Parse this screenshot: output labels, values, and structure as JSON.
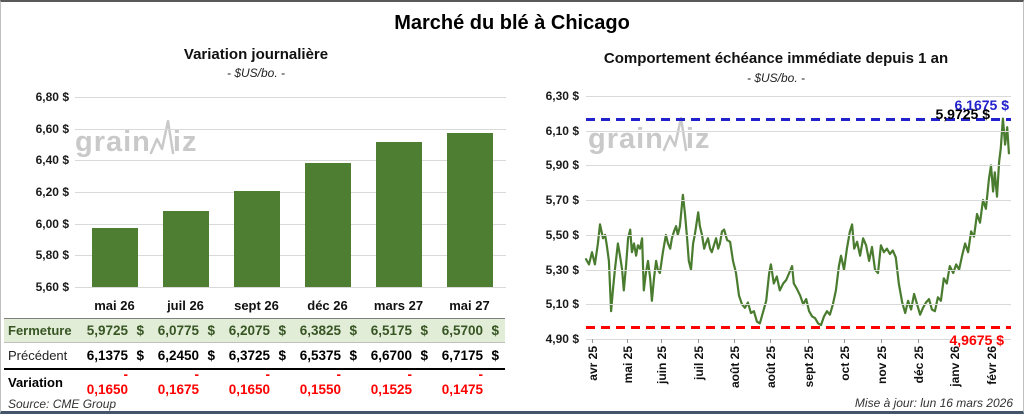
{
  "page": {
    "title": "Marché du blé à Chicago",
    "source": "Source: CME Group",
    "updated": "Mise à jour: lun 16 mars 2026",
    "watermark": "grainwiz"
  },
  "colors": {
    "bar_green": "#4e7e31",
    "line_green": "#4a7c2f",
    "table_green_bg": "#e2edd8",
    "dark_green_text": "#375623",
    "variation_red": "#ff0000",
    "blue_dash": "#2222cc",
    "red_dash": "#ff0000",
    "gridline": "#d9d9d9",
    "watermark_gray": "#c9c9c9"
  },
  "chart_data": [
    {
      "type": "bar",
      "title": "Variation journalière",
      "subtitle": "- $US/bo. -",
      "categories": [
        "mai 26",
        "juil 26",
        "sept 26",
        "déc 26",
        "mars 27",
        "mai 27"
      ],
      "values": [
        5.9725,
        6.0775,
        6.2075,
        6.3825,
        6.5175,
        6.57
      ],
      "ylim": [
        5.6,
        6.8
      ],
      "y_ticks": [
        {
          "v": 6.8,
          "label": "6,80 $"
        },
        {
          "v": 6.6,
          "label": "6,60 $"
        },
        {
          "v": 6.4,
          "label": "6,40 $"
        },
        {
          "v": 6.2,
          "label": "6,20 $"
        },
        {
          "v": 6.0,
          "label": "6,00 $"
        },
        {
          "v": 5.8,
          "label": "5,80 $"
        },
        {
          "v": 5.6,
          "label": "5,60 $"
        }
      ],
      "grid": true,
      "legend": "none"
    },
    {
      "type": "line",
      "title": "Comportement échéance immédiate depuis 1 an",
      "subtitle": "- $US/bo. -",
      "ylim": [
        4.9,
        6.3
      ],
      "y_ticks": [
        {
          "v": 6.3,
          "label": "6,30 $"
        },
        {
          "v": 6.1,
          "label": "6,10 $"
        },
        {
          "v": 5.9,
          "label": "5,90 $"
        },
        {
          "v": 5.7,
          "label": "5,70 $"
        },
        {
          "v": 5.5,
          "label": "5,50 $"
        },
        {
          "v": 5.3,
          "label": "5,30 $"
        },
        {
          "v": 5.1,
          "label": "5,10 $"
        },
        {
          "v": 4.9,
          "label": "4,90 $"
        }
      ],
      "x_ticks": [
        {
          "t": 0.014,
          "label": "avr 25"
        },
        {
          "t": 0.096,
          "label": "mai 25"
        },
        {
          "t": 0.176,
          "label": "juin 25"
        },
        {
          "t": 0.264,
          "label": "juil 25"
        },
        {
          "t": 0.348,
          "label": "août 25"
        },
        {
          "t": 0.433,
          "label": "août 25"
        },
        {
          "t": 0.522,
          "label": "sept 25"
        },
        {
          "t": 0.607,
          "label": "oct 25"
        },
        {
          "t": 0.694,
          "label": "nov 25"
        },
        {
          "t": 0.781,
          "label": "déc 25"
        },
        {
          "t": 0.866,
          "label": "janv 26"
        },
        {
          "t": 0.953,
          "label": "févr 26"
        }
      ],
      "hlines": [
        {
          "v": 6.1675,
          "label": "6,1675 $",
          "color": "#2222cc",
          "style": "dashed"
        },
        {
          "v": 4.9675,
          "label": "4,9675 $",
          "color": "#ff0000",
          "style": "dashed"
        }
      ],
      "last_price_label": "5,9725 $",
      "series": [
        {
          "name": "échéance immédiate",
          "points": [
            [
              0.0,
              5.36
            ],
            [
              0.007,
              5.33
            ],
            [
              0.014,
              5.4
            ],
            [
              0.021,
              5.33
            ],
            [
              0.028,
              5.45
            ],
            [
              0.033,
              5.56
            ],
            [
              0.04,
              5.48
            ],
            [
              0.045,
              5.5
            ],
            [
              0.049,
              5.44
            ],
            [
              0.054,
              5.35
            ],
            [
              0.059,
              5.06
            ],
            [
              0.064,
              5.2
            ],
            [
              0.068,
              5.3
            ],
            [
              0.075,
              5.45
            ],
            [
              0.08,
              5.38
            ],
            [
              0.085,
              5.3
            ],
            [
              0.089,
              5.18
            ],
            [
              0.094,
              5.32
            ],
            [
              0.099,
              5.48
            ],
            [
              0.104,
              5.53
            ],
            [
              0.108,
              5.4
            ],
            [
              0.113,
              5.45
            ],
            [
              0.118,
              5.38
            ],
            [
              0.122,
              5.44
            ],
            [
              0.127,
              5.42
            ],
            [
              0.132,
              5.48
            ],
            [
              0.136,
              5.18
            ],
            [
              0.141,
              5.28
            ],
            [
              0.146,
              5.35
            ],
            [
              0.151,
              5.25
            ],
            [
              0.155,
              5.12
            ],
            [
              0.16,
              5.25
            ],
            [
              0.165,
              5.35
            ],
            [
              0.169,
              5.3
            ],
            [
              0.174,
              5.28
            ],
            [
              0.181,
              5.4
            ],
            [
              0.188,
              5.5
            ],
            [
              0.193,
              5.45
            ],
            [
              0.198,
              5.42
            ],
            [
              0.202,
              5.48
            ],
            [
              0.207,
              5.52
            ],
            [
              0.212,
              5.55
            ],
            [
              0.216,
              5.5
            ],
            [
              0.221,
              5.55
            ],
            [
              0.228,
              5.73
            ],
            [
              0.233,
              5.62
            ],
            [
              0.238,
              5.48
            ],
            [
              0.242,
              5.35
            ],
            [
              0.247,
              5.3
            ],
            [
              0.252,
              5.45
            ],
            [
              0.256,
              5.5
            ],
            [
              0.264,
              5.63
            ],
            [
              0.268,
              5.55
            ],
            [
              0.273,
              5.5
            ],
            [
              0.278,
              5.42
            ],
            [
              0.282,
              5.45
            ],
            [
              0.287,
              5.48
            ],
            [
              0.292,
              5.42
            ],
            [
              0.296,
              5.4
            ],
            [
              0.301,
              5.44
            ],
            [
              0.306,
              5.48
            ],
            [
              0.311,
              5.42
            ],
            [
              0.315,
              5.45
            ],
            [
              0.32,
              5.52
            ],
            [
              0.325,
              5.53
            ],
            [
              0.332,
              5.47
            ],
            [
              0.339,
              5.46
            ],
            [
              0.346,
              5.35
            ],
            [
              0.353,
              5.28
            ],
            [
              0.36,
              5.15
            ],
            [
              0.367,
              5.1
            ],
            [
              0.374,
              5.08
            ],
            [
              0.381,
              5.11
            ],
            [
              0.388,
              5.05
            ],
            [
              0.395,
              5.06
            ],
            [
              0.402,
              5.0
            ],
            [
              0.409,
              4.99
            ],
            [
              0.416,
              5.05
            ],
            [
              0.424,
              5.12
            ],
            [
              0.431,
              5.28
            ],
            [
              0.435,
              5.33
            ],
            [
              0.442,
              5.22
            ],
            [
              0.449,
              5.26
            ],
            [
              0.456,
              5.18
            ],
            [
              0.464,
              5.22
            ],
            [
              0.471,
              5.24
            ],
            [
              0.478,
              5.28
            ],
            [
              0.485,
              5.32
            ],
            [
              0.489,
              5.22
            ],
            [
              0.496,
              5.19
            ],
            [
              0.504,
              5.15
            ],
            [
              0.511,
              5.1
            ],
            [
              0.518,
              5.13
            ],
            [
              0.525,
              5.06
            ],
            [
              0.532,
              5.03
            ],
            [
              0.539,
              5.02
            ],
            [
              0.546,
              4.99
            ],
            [
              0.553,
              4.98
            ],
            [
              0.56,
              5.03
            ],
            [
              0.567,
              5.06
            ],
            [
              0.574,
              5.04
            ],
            [
              0.581,
              5.1
            ],
            [
              0.588,
              5.18
            ],
            [
              0.595,
              5.32
            ],
            [
              0.6,
              5.38
            ],
            [
              0.607,
              5.3
            ],
            [
              0.614,
              5.42
            ],
            [
              0.621,
              5.52
            ],
            [
              0.626,
              5.56
            ],
            [
              0.631,
              5.42
            ],
            [
              0.638,
              5.46
            ],
            [
              0.645,
              5.38
            ],
            [
              0.652,
              5.48
            ],
            [
              0.659,
              5.44
            ],
            [
              0.666,
              5.35
            ],
            [
              0.673,
              5.43
            ],
            [
              0.68,
              5.3
            ],
            [
              0.687,
              5.28
            ],
            [
              0.694,
              5.44
            ],
            [
              0.701,
              5.4
            ],
            [
              0.708,
              5.42
            ],
            [
              0.715,
              5.39
            ],
            [
              0.722,
              5.41
            ],
            [
              0.729,
              5.37
            ],
            [
              0.736,
              5.22
            ],
            [
              0.744,
              5.11
            ],
            [
              0.751,
              5.05
            ],
            [
              0.758,
              5.12
            ],
            [
              0.765,
              5.07
            ],
            [
              0.772,
              5.16
            ],
            [
              0.779,
              5.1
            ],
            [
              0.786,
              5.04
            ],
            [
              0.793,
              5.08
            ],
            [
              0.8,
              5.11
            ],
            [
              0.807,
              5.13
            ],
            [
              0.814,
              5.07
            ],
            [
              0.821,
              5.06
            ],
            [
              0.828,
              5.14
            ],
            [
              0.835,
              5.12
            ],
            [
              0.842,
              5.25
            ],
            [
              0.849,
              5.22
            ],
            [
              0.856,
              5.32
            ],
            [
              0.864,
              5.28
            ],
            [
              0.871,
              5.33
            ],
            [
              0.878,
              5.3
            ],
            [
              0.885,
              5.38
            ],
            [
              0.892,
              5.45
            ],
            [
              0.899,
              5.4
            ],
            [
              0.906,
              5.52
            ],
            [
              0.913,
              5.49
            ],
            [
              0.92,
              5.62
            ],
            [
              0.927,
              5.57
            ],
            [
              0.934,
              5.7
            ],
            [
              0.941,
              5.65
            ],
            [
              0.948,
              5.82
            ],
            [
              0.953,
              5.9
            ],
            [
              0.958,
              5.75
            ],
            [
              0.962,
              5.86
            ],
            [
              0.967,
              5.72
            ],
            [
              0.972,
              5.92
            ],
            [
              0.976,
              6.0
            ],
            [
              0.981,
              6.17
            ],
            [
              0.986,
              6.02
            ],
            [
              0.991,
              6.12
            ],
            [
              0.995,
              5.97
            ]
          ]
        }
      ],
      "legend": "none",
      "grid": true
    }
  ],
  "table": {
    "columns": [
      "mai 26",
      "juil 26",
      "sept 26",
      "déc 26",
      "mars 27",
      "mai 27"
    ],
    "rows": [
      {
        "label": "Fermeture",
        "style": "close",
        "values": [
          "5,9725 $",
          "6,0775 $",
          "6,2075 $",
          "6,3825 $",
          "6,5175 $",
          "6,5700 $"
        ]
      },
      {
        "label": "Précédent",
        "style": "prev",
        "values": [
          "6,1375 $",
          "6,2450 $",
          "6,3725 $",
          "6,5375 $",
          "6,6700 $",
          "6,7175 $"
        ]
      },
      {
        "label": "Variation",
        "style": "var",
        "values": [
          "- 0,1650",
          "- 0,1675",
          "- 0,1650",
          "- 0,1550",
          "- 0,1525",
          "- 0,1475"
        ]
      }
    ]
  }
}
